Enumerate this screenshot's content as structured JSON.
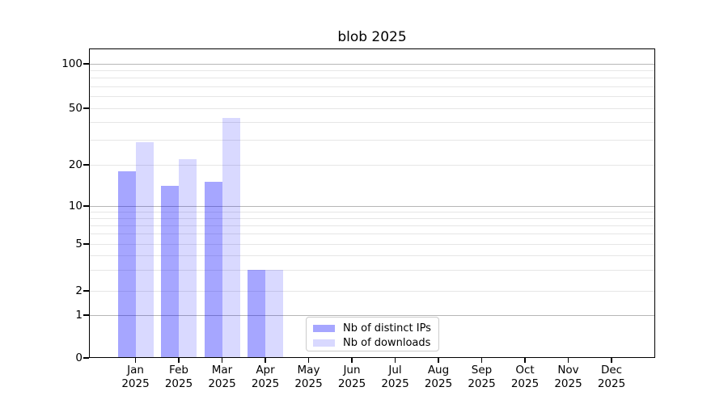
{
  "title": "blob 2025",
  "chart_data": {
    "type": "bar",
    "title": "blob 2025",
    "categories": [
      "Jan 2025",
      "Feb 2025",
      "Mar 2025",
      "Apr 2025",
      "May 2025",
      "Jun 2025",
      "Jul 2025",
      "Aug 2025",
      "Sep 2025",
      "Oct 2025",
      "Nov 2025",
      "Dec 2025"
    ],
    "series": [
      {
        "name": "Nb of distinct IPs",
        "color": "rgba(0,0,255,0.35)",
        "values": [
          18,
          14,
          15,
          3,
          0,
          0,
          0,
          0,
          0,
          0,
          0,
          0
        ]
      },
      {
        "name": "Nb of downloads",
        "color": "rgba(0,0,255,0.15)",
        "values": [
          29,
          22,
          43,
          3,
          0,
          0,
          0,
          0,
          0,
          0,
          0,
          0
        ]
      }
    ],
    "xlabel": "",
    "ylabel": "",
    "y_ticks": [
      0,
      1,
      2,
      5,
      10,
      20,
      50,
      100
    ],
    "y_major_gridlines": [
      1,
      10,
      100
    ],
    "y_minor_gridlines": [
      2,
      3,
      4,
      5,
      6,
      7,
      8,
      9,
      20,
      30,
      40,
      50,
      60,
      70,
      80,
      90
    ],
    "ylim": [
      0,
      130
    ],
    "yscale": "log above 1, linear between 0 and 1",
    "grid": "horizontal only",
    "legend_position": "lower center, inside plot"
  },
  "legend": {
    "items": [
      {
        "label": "Nb of distinct IPs",
        "color": "rgba(0,0,255,0.35)"
      },
      {
        "label": "Nb of downloads",
        "color": "rgba(0,0,255,0.15)"
      }
    ]
  },
  "colors": {
    "bar_base": "#0000ff",
    "grid_major": "#b6b6b6",
    "grid_minor": "#e6e6e6",
    "spine": "#000000",
    "text": "#000000",
    "legend_border": "#cccccc",
    "background": "#ffffff"
  }
}
